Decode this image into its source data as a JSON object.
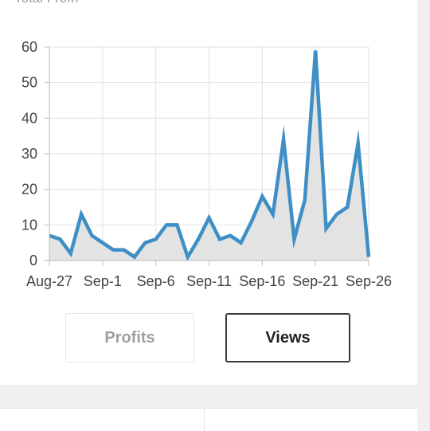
{
  "card": {
    "partial_title": "Total From"
  },
  "chart_data": {
    "type": "area",
    "x_tick_labels": [
      "Aug-27",
      "Sep-1",
      "Sep-6",
      "Sep-11",
      "Sep-16",
      "Sep-21",
      "Sep-26"
    ],
    "y_ticks": [
      0,
      10,
      20,
      30,
      40,
      50,
      60
    ],
    "ylim": [
      0,
      60
    ],
    "grid": true,
    "line_color": "#3d8fc6",
    "fill_color": "#e3e3e3",
    "x": [
      "Aug-27",
      "Aug-28",
      "Aug-29",
      "Aug-30",
      "Aug-31",
      "Sep-1",
      "Sep-2",
      "Sep-3",
      "Sep-4",
      "Sep-5",
      "Sep-6",
      "Sep-7",
      "Sep-8",
      "Sep-9",
      "Sep-10",
      "Sep-11",
      "Sep-12",
      "Sep-13",
      "Sep-14",
      "Sep-15",
      "Sep-16",
      "Sep-17",
      "Sep-18",
      "Sep-19",
      "Sep-20",
      "Sep-21",
      "Sep-22",
      "Sep-23",
      "Sep-24",
      "Sep-25",
      "Sep-26"
    ],
    "values": [
      7,
      6,
      2,
      13,
      7,
      5,
      3,
      3,
      1,
      5,
      6,
      10,
      10,
      1,
      6,
      12,
      6,
      7,
      5,
      11,
      18,
      13,
      34,
      6,
      17,
      59,
      9,
      13,
      15,
      33,
      1
    ]
  },
  "tabs": {
    "profits_label": "Profits",
    "views_label": "Views"
  }
}
